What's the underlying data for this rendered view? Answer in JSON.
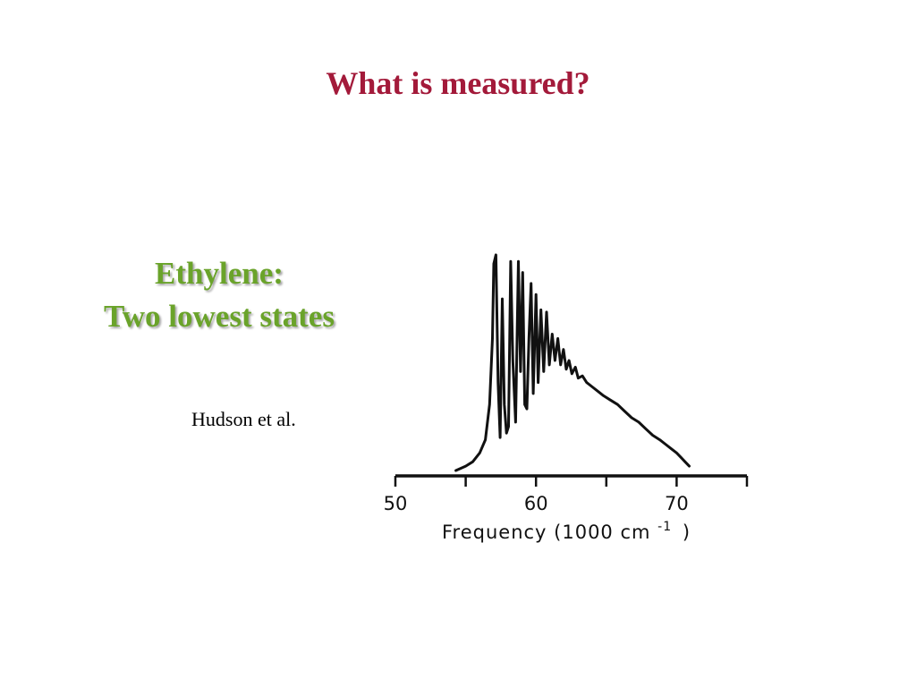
{
  "slide": {
    "title": "What is measured?",
    "subtitle_line1": "Ethylene:",
    "subtitle_line2": "Two lowest states",
    "citation": "Hudson et al."
  },
  "chart_data": {
    "type": "line",
    "xlabel": "Frequency (1000 cm",
    "xlabel_sup": "-1",
    "xlabel_close": ")",
    "xlim": [
      50,
      75
    ],
    "ylim": [
      0,
      1
    ],
    "xticks": [
      50,
      55,
      60,
      65,
      70,
      75
    ],
    "xtick_labels": [
      "50",
      "60",
      "70"
    ],
    "xtick_label_values": [
      50,
      60,
      70
    ],
    "grid": false,
    "series": [
      {
        "name": "",
        "color": "#111111",
        "x": [
          54.3,
          55.0,
          55.5,
          56.0,
          56.4,
          56.7,
          56.9,
          57.0,
          57.15,
          57.3,
          57.45,
          57.6,
          57.75,
          57.9,
          58.05,
          58.2,
          58.35,
          58.55,
          58.75,
          58.9,
          59.05,
          59.2,
          59.35,
          59.5,
          59.65,
          59.8,
          60.0,
          60.15,
          60.35,
          60.55,
          60.75,
          60.95,
          61.15,
          61.35,
          61.55,
          61.75,
          61.95,
          62.15,
          62.35,
          62.55,
          62.8,
          63.0,
          63.3,
          63.6,
          64.0,
          64.4,
          64.8,
          65.3,
          65.8,
          66.3,
          66.8,
          67.3,
          67.8,
          68.3,
          68.8,
          69.2,
          69.6,
          70.0,
          70.3,
          70.6,
          70.9
        ],
        "y": [
          0.0,
          0.02,
          0.04,
          0.08,
          0.14,
          0.3,
          0.6,
          0.94,
          0.98,
          0.4,
          0.15,
          0.78,
          0.3,
          0.17,
          0.2,
          0.95,
          0.5,
          0.22,
          0.95,
          0.45,
          0.9,
          0.3,
          0.28,
          0.6,
          0.85,
          0.35,
          0.8,
          0.4,
          0.73,
          0.45,
          0.72,
          0.48,
          0.62,
          0.5,
          0.6,
          0.48,
          0.55,
          0.46,
          0.5,
          0.44,
          0.47,
          0.42,
          0.43,
          0.4,
          0.38,
          0.36,
          0.34,
          0.32,
          0.3,
          0.27,
          0.24,
          0.22,
          0.19,
          0.16,
          0.14,
          0.12,
          0.1,
          0.08,
          0.06,
          0.04,
          0.02
        ]
      }
    ]
  }
}
